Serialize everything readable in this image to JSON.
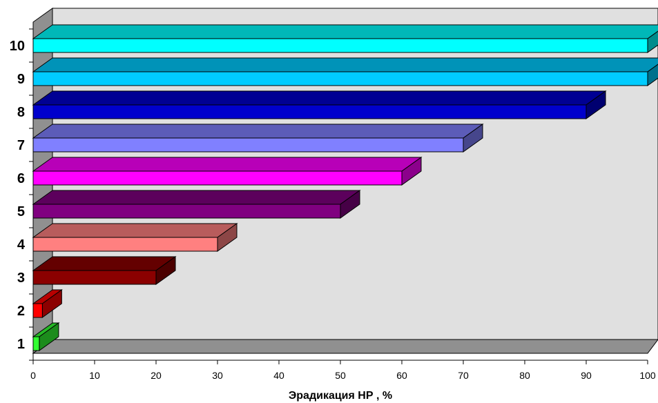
{
  "chart_data": {
    "type": "bar",
    "orientation": "horizontal",
    "style": "3d",
    "title": "",
    "xlabel": "Эрадикация НР , %",
    "ylabel": "",
    "xlim": [
      0,
      100
    ],
    "x_ticks": [
      0,
      10,
      20,
      30,
      40,
      50,
      60,
      70,
      80,
      90,
      100
    ],
    "grid": false,
    "legend": "none",
    "categories": [
      "1",
      "2",
      "3",
      "4",
      "5",
      "6",
      "7",
      "8",
      "9",
      "10"
    ],
    "values": [
      1,
      1.5,
      20,
      30,
      50,
      60,
      70,
      90,
      100,
      100
    ],
    "colors": [
      "#33ff33",
      "#ff0000",
      "#8b0000",
      "#ff8080",
      "#800080",
      "#ff00ff",
      "#8080ff",
      "#0000cc",
      "#00ccff",
      "#00ffff"
    ]
  }
}
